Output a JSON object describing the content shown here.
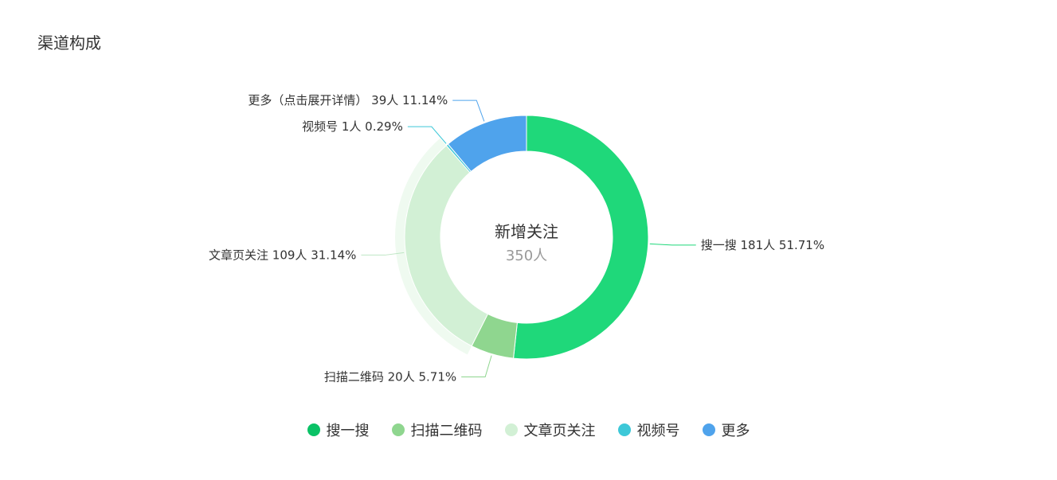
{
  "page": {
    "title": "渠道构成"
  },
  "chart_data": {
    "type": "pie",
    "center_label": "新增关注",
    "center_value": "350人",
    "total": 350,
    "series": [
      {
        "name": "搜一搜",
        "value": 181,
        "unit": "人",
        "percent": "51.71%",
        "color": "#1fd87a",
        "label": "搜一搜 181人 51.71%"
      },
      {
        "name": "扫描二维码",
        "value": 20,
        "unit": "人",
        "percent": "5.71%",
        "color": "#8fd68f",
        "label": "扫描二维码 20人 5.71%"
      },
      {
        "name": "文章页关注",
        "value": 109,
        "unit": "人",
        "percent": "31.14%",
        "color": "#d2f0d5",
        "label": "文章页关注 109人 31.14%"
      },
      {
        "name": "视频号",
        "value": 1,
        "unit": "人",
        "percent": "0.29%",
        "color": "#3dc8d8",
        "label": "视频号 1人 0.29%"
      },
      {
        "name": "更多",
        "value": 39,
        "unit": "人",
        "percent": "11.14%",
        "color": "#4fa3ec",
        "label": "更多（点击展开详情） 39人 11.14%"
      }
    ],
    "highlighted": "文章页关注"
  },
  "legend": [
    {
      "label": "搜一搜",
      "color": "#0ac266"
    },
    {
      "label": "扫描二维码",
      "color": "#8fd68f"
    },
    {
      "label": "文章页关注",
      "color": "#d2f0d5"
    },
    {
      "label": "视频号",
      "color": "#3dc8d8"
    },
    {
      "label": "更多",
      "color": "#4fa3ec"
    }
  ]
}
